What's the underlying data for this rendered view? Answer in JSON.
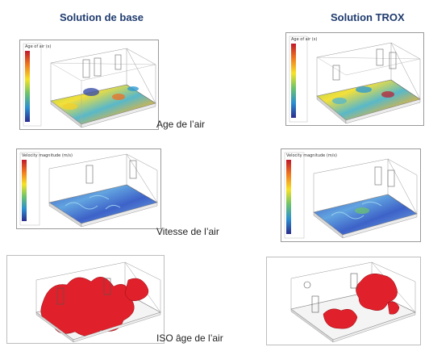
{
  "columns": {
    "left_title": "Solution de base",
    "right_title": "Solution TROX"
  },
  "rows": {
    "age_label": "Age de l’air",
    "speed_label": "Vitesse de l’air",
    "iso_label": "ISO âge de l’air"
  },
  "legends": {
    "age_title": "Age of air (s)",
    "speed_title": "Velocity magnitude (m/s)"
  },
  "colors": {
    "title": "#1f3b6e",
    "iso_surface": "#e0202a"
  }
}
